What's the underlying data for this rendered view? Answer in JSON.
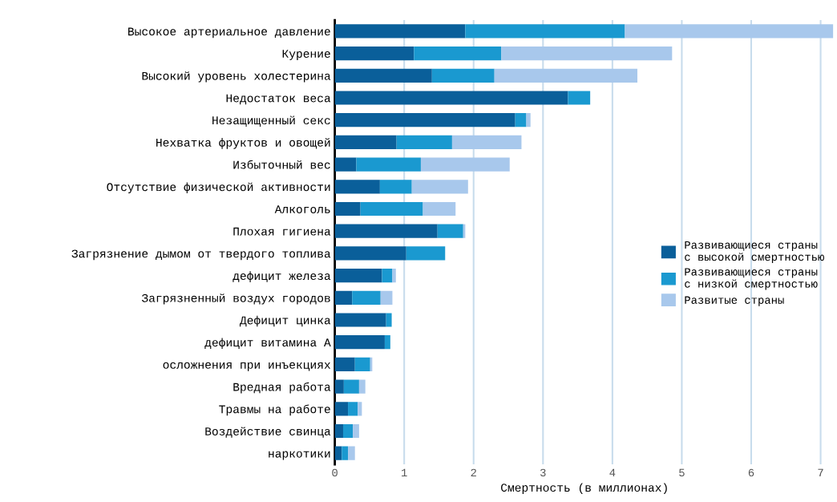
{
  "chart_data": {
    "type": "bar",
    "orientation": "horizontal",
    "stacked": true,
    "xlabel": "Смертность (в миллионах)",
    "categories": [
      "Высокое артериальное давление",
      "Курение",
      "Высокий уровень холестерина",
      "Недостаток веса",
      "Незащищенный секс",
      "Нехватка фруктов и овощей",
      "Избыточный вес",
      "Отсутствие физической активности",
      "Алкоголь",
      "Плохая гигиена",
      "Загрязнение дымом от твердого топлива",
      "дефицит железа",
      "Загрязненный воздух городов",
      "Дефицит цинка",
      "дефицит витамина А",
      "осложнения при инъекциях",
      "Вредная работа",
      "Травмы на работе",
      "Воздействие свинца",
      "наркотики"
    ],
    "series": [
      {
        "name": "Развивающиеся страны\nс высокой смертностью",
        "color": "#0a5f9a",
        "values": [
          1.88,
          1.14,
          1.4,
          3.36,
          2.6,
          0.89,
          0.31,
          0.65,
          0.37,
          1.48,
          1.03,
          0.68,
          0.25,
          0.74,
          0.72,
          0.29,
          0.13,
          0.19,
          0.12,
          0.1
        ]
      },
      {
        "name": "Развивающиеся страны\nс низкой смертностью",
        "color": "#1a99d0",
        "values": [
          2.3,
          1.26,
          0.9,
          0.32,
          0.16,
          0.8,
          0.93,
          0.46,
          0.9,
          0.37,
          0.56,
          0.15,
          0.41,
          0.08,
          0.08,
          0.22,
          0.22,
          0.14,
          0.14,
          0.09
        ]
      },
      {
        "name": "Развитые страны",
        "color": "#a8c8ec",
        "values": [
          3.0,
          2.46,
          2.06,
          0,
          0.06,
          1.0,
          1.28,
          0.81,
          0.47,
          0.03,
          0,
          0.05,
          0.17,
          0,
          0,
          0.03,
          0.09,
          0.06,
          0.09,
          0.1
        ]
      }
    ],
    "xlim": [
      0,
      7.2
    ],
    "xticks": [
      0,
      1,
      2,
      3,
      4,
      5,
      6,
      7
    ],
    "grid": "x",
    "legend": "right"
  }
}
